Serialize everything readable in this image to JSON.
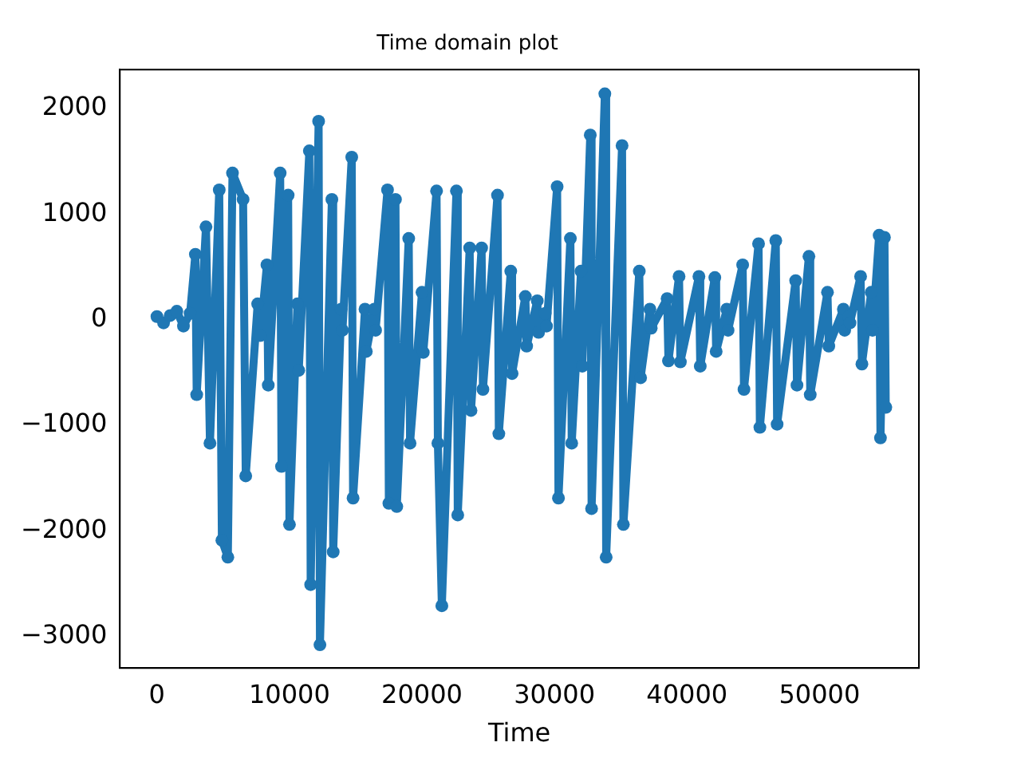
{
  "chart_data": {
    "type": "line",
    "title": "Time domain plot",
    "xlabel": "Time",
    "x": [
      0,
      500,
      1000,
      1500,
      2000,
      2500,
      2900,
      3000,
      3700,
      4000,
      4700,
      4900,
      5350,
      5700,
      6500,
      6700,
      7600,
      7800,
      8300,
      8400,
      9300,
      9400,
      9900,
      10000,
      10600,
      10700,
      11500,
      11600,
      12200,
      12300,
      13200,
      13300,
      13900,
      14000,
      14700,
      14800,
      15700,
      15800,
      16400,
      16500,
      17400,
      17500,
      18000,
      18100,
      19000,
      19100,
      20000,
      20100,
      21100,
      21200,
      21500,
      22600,
      22700,
      23600,
      23700,
      24500,
      24600,
      25700,
      25800,
      26700,
      26800,
      27800,
      27900,
      28700,
      28800,
      29300,
      29400,
      30200,
      30300,
      31200,
      31300,
      32000,
      32100,
      32700,
      32800,
      33800,
      33900,
      35100,
      35200,
      36400,
      36500,
      37200,
      37300,
      38500,
      38600,
      39400,
      39500,
      40900,
      41000,
      42100,
      42200,
      43000,
      43100,
      44200,
      44300,
      45400,
      45500,
      46700,
      46800,
      48200,
      48300,
      49200,
      49300,
      50600,
      50700,
      51800,
      51900,
      52200,
      52300,
      53100,
      53200,
      53900,
      54000,
      54500,
      54600,
      54900,
      55000
    ],
    "series": [
      {
        "color": "#1f77b4",
        "values": [
          30,
          -30,
          40,
          80,
          -60,
          60,
          620,
          -710,
          880,
          -1170,
          1230,
          -2090,
          -2250,
          1390,
          1140,
          -1480,
          150,
          -150,
          520,
          -620,
          1390,
          -1390,
          1180,
          -1940,
          150,
          -480,
          1600,
          -2510,
          1880,
          -3080,
          1140,
          -2200,
          100,
          -100,
          1540,
          -1690,
          100,
          -300,
          100,
          -100,
          1230,
          -1740,
          1140,
          -1770,
          770,
          -1170,
          260,
          -310,
          1220,
          -1170,
          -2710,
          1220,
          -1850,
          680,
          -860,
          680,
          -660,
          1180,
          -1080,
          460,
          -510,
          220,
          -250,
          180,
          -120,
          60,
          -60,
          1260,
          -1690,
          770,
          -1170,
          460,
          -440,
          1750,
          -1790,
          2140,
          -2250,
          1650,
          -1940,
          460,
          -550,
          100,
          -80,
          200,
          -390,
          410,
          -400,
          410,
          -440,
          400,
          -300,
          100,
          -100,
          520,
          -660,
          720,
          -1020,
          750,
          -990,
          370,
          -620,
          600,
          -710,
          260,
          -250,
          100,
          -100,
          30,
          -30,
          410,
          -420,
          260,
          -100,
          800,
          -1120,
          780,
          -830
        ]
      }
    ],
    "xlim": [
      -2800,
      57500
    ],
    "xticks": [
      0,
      10000,
      20000,
      30000,
      40000,
      50000
    ],
    "ylim": [
      -3300,
      2370
    ],
    "yticks": [
      -3000,
      -2000,
      -1000,
      0,
      1000,
      2000
    ],
    "marker": "circle",
    "line_style": "solid",
    "grid": false,
    "legend": false
  }
}
